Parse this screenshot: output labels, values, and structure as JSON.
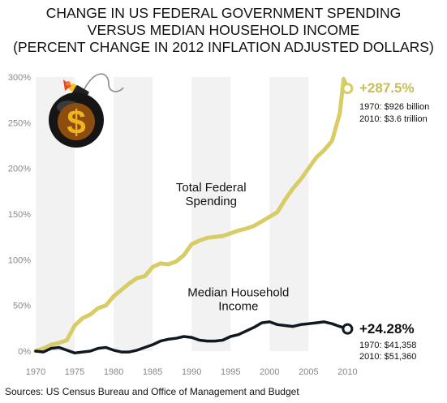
{
  "title_lines": [
    "CHANGE IN US FEDERAL GOVERNMENT SPENDING",
    "VERSUS MEDIAN HOUSEHOLD INCOME",
    "(PERCENT CHANGE IN 2012 INFLATION ADJUSTED DOLLARS)"
  ],
  "source": "Sources: US Census Bureau and Office of Management and Budget",
  "colors": {
    "spending": "#d7cc66",
    "income": "#101820",
    "band": "#f2f2f2",
    "axis_text": "#888888",
    "spending_label": "#c9bd55"
  },
  "icon": "bomb-dollar-icon",
  "chart_data": {
    "type": "line",
    "title": "CHANGE IN US FEDERAL GOVERNMENT SPENDING VERSUS MEDIAN HOUSEHOLD INCOME (PERCENT CHANGE IN 2012 INFLATION ADJUSTED DOLLARS)",
    "xlim": [
      1970,
      2011
    ],
    "ylim": [
      0,
      300
    ],
    "x_ticks": [
      1970,
      1975,
      1980,
      1985,
      1990,
      1995,
      2000,
      2005,
      2010
    ],
    "x_tick_labels": [
      "1970",
      "1975",
      "1980",
      "1985",
      "1990",
      "1995",
      "2000",
      "2005",
      "2010"
    ],
    "y_ticks": [
      0,
      50,
      100,
      150,
      200,
      250,
      300
    ],
    "y_tick_labels": [
      "0%",
      "50%",
      "100%",
      "150%",
      "200%",
      "250%",
      "300%"
    ],
    "grid": "alternating vertical bands",
    "series": [
      {
        "name": "Total Federal Spending",
        "label_lines": [
          "Total Federal",
          "Spending"
        ],
        "label_pos": [
          1992.5,
          175
        ],
        "end_value_label": "+287.5%",
        "end_notes": [
          "1970: $926 billion",
          "2010: $3.6 trillion"
        ],
        "x": [
          1970,
          1971,
          1972,
          1973,
          1974,
          1975,
          1976,
          1977,
          1978,
          1979,
          1980,
          1981,
          1982,
          1983,
          1984,
          1985,
          1986,
          1987,
          1988,
          1989,
          1990,
          1991,
          1992,
          1993,
          1994,
          1995,
          1996,
          1997,
          1998,
          1999,
          2000,
          2001,
          2002,
          2003,
          2004,
          2005,
          2006,
          2007,
          2008,
          2009,
          2009.5,
          2010
        ],
        "values": [
          0,
          3,
          7,
          9,
          12,
          28,
          36,
          40,
          47,
          50,
          60,
          67,
          74,
          80,
          82,
          92,
          96,
          95,
          98,
          105,
          117,
          121,
          124,
          125,
          126,
          129,
          132,
          134,
          137,
          142,
          147,
          152,
          166,
          178,
          188,
          200,
          212,
          220,
          230,
          260,
          298,
          287.5
        ]
      },
      {
        "name": "Median Household Income",
        "label_lines": [
          "Median Household",
          "Income"
        ],
        "label_pos": [
          1996,
          60
        ],
        "end_value_label": "+24.28%",
        "end_notes": [
          "1970: $41,358",
          "2010: $51,360"
        ],
        "x": [
          1970,
          1971,
          1972,
          1973,
          1974,
          1975,
          1976,
          1977,
          1978,
          1979,
          1980,
          1981,
          1982,
          1983,
          1984,
          1985,
          1986,
          1987,
          1988,
          1989,
          1990,
          1991,
          1992,
          1993,
          1994,
          1995,
          1996,
          1997,
          1998,
          1999,
          2000,
          2001,
          2002,
          2003,
          2004,
          2005,
          2006,
          2007,
          2008,
          2009,
          2010
        ],
        "values": [
          0,
          -1,
          3,
          4,
          1,
          -2,
          -1,
          0,
          3,
          4,
          1,
          -1,
          -1,
          1,
          4,
          7,
          11,
          13,
          14,
          16,
          15,
          12,
          11,
          11,
          12,
          16,
          18,
          22,
          26,
          31,
          32,
          29,
          28,
          27,
          29,
          30,
          31,
          32,
          30,
          27,
          24.28
        ]
      }
    ]
  }
}
